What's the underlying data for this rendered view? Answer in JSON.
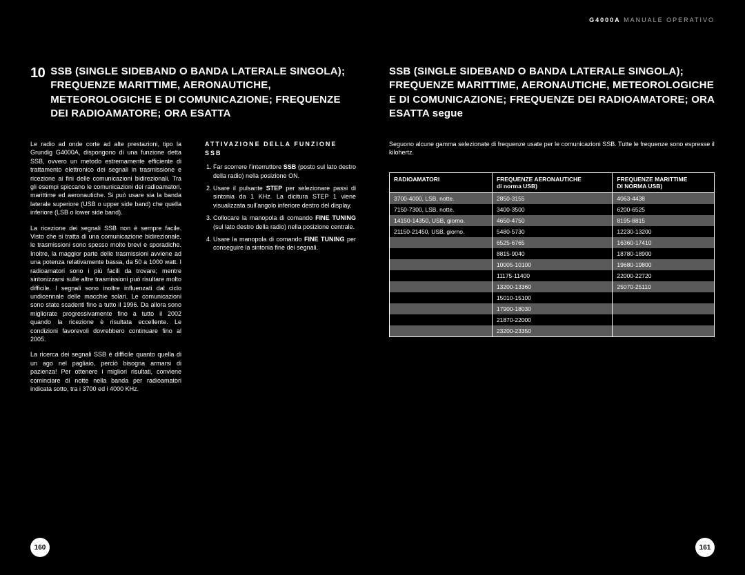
{
  "header": {
    "model": "G4000A",
    "title": "MANUALE OPERATIVO"
  },
  "left": {
    "number": "10",
    "heading": "SSB (SINGLE SIDEBAND O BANDA LATERALE SINGOLA); FREQUENZE MARITTIME, AERONAUTICHE, METEOROLOGICHE E DI COMUNICAZIONE; FREQUENZE DEI RADIOAMATORE; ORA ESATTA",
    "col1_p1": "Le radio ad onde corte ad alte prestazioni, tipo la Grundig G4000A, dispongono di una funzione detta SSB, ovvero un metodo estremamente efficiente di trattamento elettronico dei segnali in trasmissione e ricezione ai fini delle comunicazioni bidirezionali. Tra gli esempi spiccano le comunicazioni dei radioamatori, marittime ed aeronautiche. Si può usare sia la banda laterale superiore (USB o upper side band) che quella inferiore (LSB o lower side band).",
    "col1_p2": "La ricezione dei segnali SSB non è sempre facile. Visto che si tratta di una comunicazione bidirezionale, le trasmissioni sono spesso molto brevi e sporadiche. Inoltre, la maggior parte delle trasmissioni avviene ad una potenza relativamente bassa, da 50 a 1000 watt. I radioamatori sono i più facili da trovare; mentre sintonizzarsi sulle altre trasmissioni può risultare molto difficile. I segnali sono inoltre influenzati dal ciclo undicennale delle macchie solari. Le comunicazioni sono state scadenti fino a tutto il 1996. Da allora sono migliorate progressivamente fino a tutto il 2002 quando la ricezione è risultata eccellente. Le condizioni favorevoli dovrebbero continuare fino al 2005.",
    "col1_p3": "La ricerca dei segnali SSB è difficile quanto quella di un ago nel pagliaio, perciò bisogna armarsi di pazienza! Per ottenere i migliori risultati, conviene cominciare di notte nella banda per radioamatori indicata sotto, tra i 3700 ed i 4000 KHz.",
    "subhead": "ATTIVAZIONE DELLA FUNZIONE SSB",
    "steps": [
      "Far scorrere l'interruttore SSB (posto sul lato destro della radio) nella posizione ON.",
      "Usare il pulsante STEP per selezionare passi di sintonia da 1 KHz. La dicitura STEP 1 viene visualizzata sull'angolo inferiore destro del display.",
      "Collocare la manopola di comando FINE TUNING (sul lato destro della radio) nella posizione centrale.",
      "Usare la manopola di comando FINE TUNING per conseguire la sintonia fine dei segnali."
    ],
    "pagenum": "160"
  },
  "right": {
    "heading": "SSB (SINGLE SIDEBAND O BANDA LATERALE SINGOLA); FREQUENZE MARITTIME, AERONAUTICHE, METEOROLOGICHE E DI COMUNICAZIONE; FREQUENZE DEI RADIOAMATORE; ORA ESATTA segue",
    "intro": "Seguono alcune gamma selezionate di frequenze usate per le comunicazioni SSB. Tutte le frequenze sono espresse il kilohertz.",
    "table": {
      "headers": [
        {
          "main": "RADIOAMATORI",
          "sub": ""
        },
        {
          "main": "FREQUENZE AERONAUTICHE",
          "sub": "di norma USB)"
        },
        {
          "main": "FREQUENZE MARITTIME",
          "sub": "DI NORMA USB)"
        }
      ],
      "rows": [
        [
          "3700-4000, LSB, notte.",
          "2850-3155",
          "4063-4438"
        ],
        [
          "7150-7300, LSB, notte.",
          "3400-3500",
          "6200-6525"
        ],
        [
          "14150-14350, USB, giorno.",
          "4650-4750",
          "8195-8815"
        ],
        [
          "21150-21450, USB, giorno.",
          "5480-5730",
          "12230-13200"
        ],
        [
          "",
          "6525-6765",
          "16360-17410"
        ],
        [
          "",
          "8815-9040",
          "18780-18900"
        ],
        [
          "",
          "10005-10100",
          "19680-19800"
        ],
        [
          "",
          "11175-11400",
          "22000-22720"
        ],
        [
          "",
          "13200-13360",
          "25070-25110"
        ],
        [
          "",
          "15010-15100",
          ""
        ],
        [
          "",
          "17900-18030",
          ""
        ],
        [
          "",
          "21870-22000",
          ""
        ],
        [
          "",
          "23200-23350",
          ""
        ]
      ]
    },
    "pagenum": "161"
  }
}
